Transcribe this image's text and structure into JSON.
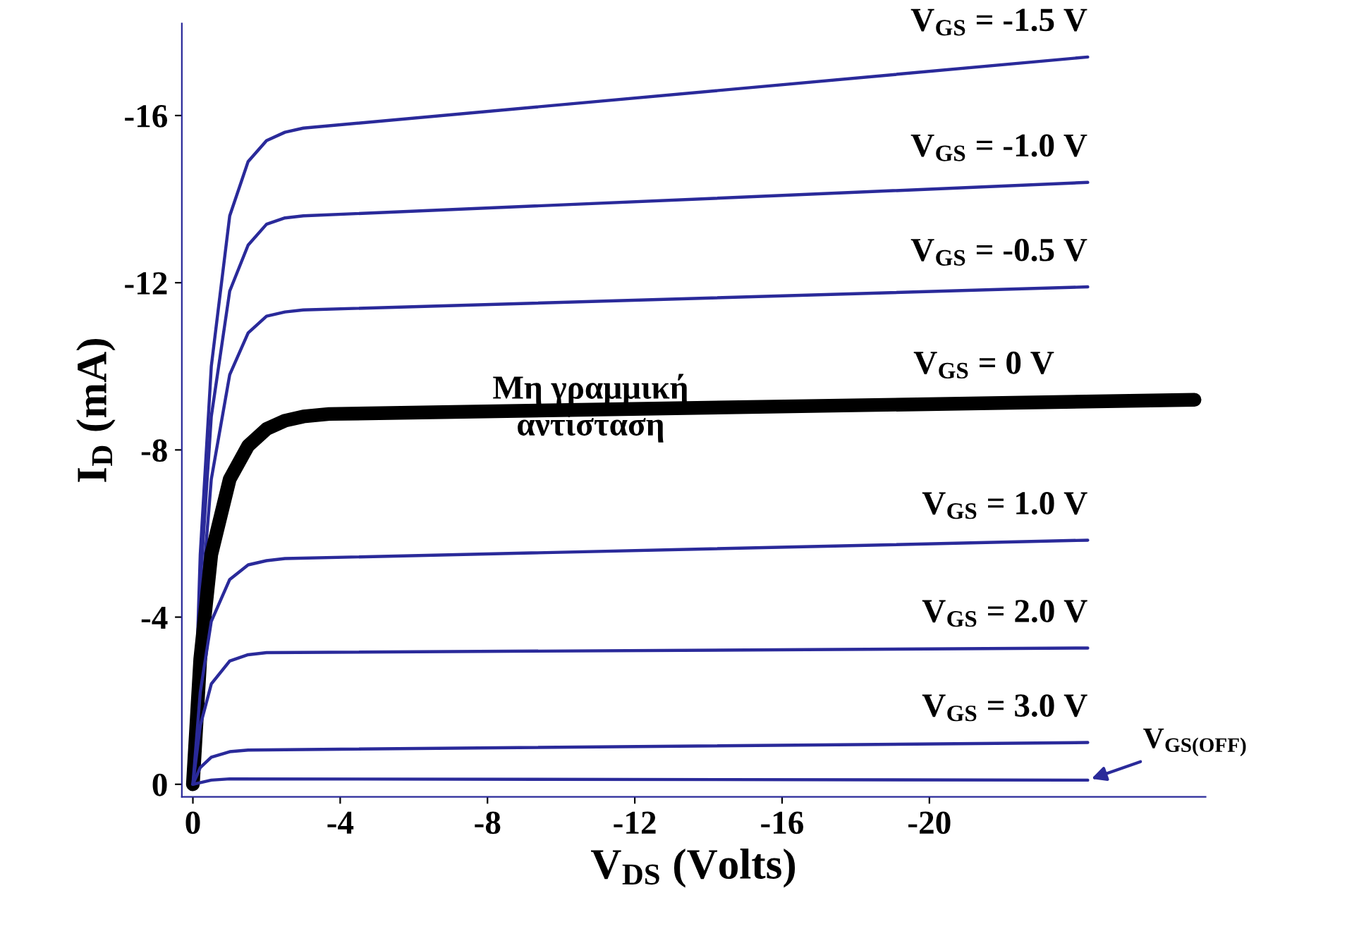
{
  "chart_data": {
    "type": "line",
    "xlabel": "V$_{DS}$ (Volts)",
    "ylabel": "I$_{D}$ (mA)",
    "xlim": [
      0.3,
      -27.5
    ],
    "ylim": [
      0.3,
      -18.2
    ],
    "xticks": [
      0,
      -4,
      -8,
      -12,
      -16,
      -20
    ],
    "yticks": [
      0,
      -4,
      -8,
      -12,
      -16
    ],
    "grid": false,
    "legend": false,
    "marker": "none",
    "line_style": "solid",
    "annotations": [
      "Μη γραμμική\nαντίσταση",
      {
        "text": "V$_{GS(OFF)}$",
        "x": -24.3,
        "y": -0.1
      }
    ],
    "series": [
      {
        "name": "V$_{GS}$ = -1.5 V",
        "color": "#2a2a9a",
        "x": [
          0,
          -0.2,
          -0.5,
          -1,
          -1.5,
          -2,
          -2.5,
          -3,
          -24.3
        ],
        "values": [
          0,
          -5.5,
          -10,
          -13.6,
          -14.9,
          -15.4,
          -15.6,
          -15.7,
          -17.4
        ]
      },
      {
        "name": "V$_{GS}$ = -1.0 V",
        "color": "#2a2a9a",
        "x": [
          0,
          -0.2,
          -0.5,
          -1,
          -1.5,
          -2,
          -2.5,
          -3,
          -24.3
        ],
        "values": [
          0,
          -4.8,
          -8.8,
          -11.8,
          -12.9,
          -13.4,
          -13.55,
          -13.6,
          -14.4
        ]
      },
      {
        "name": "V$_{GS}$ = -0.5 V",
        "color": "#2a2a9a",
        "x": [
          0,
          -0.2,
          -0.5,
          -1,
          -1.5,
          -2,
          -2.5,
          -3,
          -24.3
        ],
        "values": [
          0,
          -4,
          -7.3,
          -9.8,
          -10.8,
          -11.2,
          -11.3,
          -11.35,
          -11.9
        ]
      },
      {
        "name": "V$_{GS}$ = 0 V",
        "color": "#000000",
        "x": [
          0,
          -0.2,
          -0.5,
          -1,
          -1.5,
          -2,
          -2.5,
          -3,
          -3.7,
          -27.2
        ],
        "values": [
          0,
          -3,
          -5.5,
          -7.3,
          -8.1,
          -8.5,
          -8.7,
          -8.8,
          -8.86,
          -9.2
        ]
      },
      {
        "name": "V$_{GS}$ = 1.0 V",
        "color": "#2a2a9a",
        "x": [
          0,
          -0.2,
          -0.5,
          -1,
          -1.5,
          -2,
          -2.5,
          -24.3
        ],
        "values": [
          0,
          -2.2,
          -3.9,
          -4.9,
          -5.25,
          -5.35,
          -5.4,
          -5.84
        ]
      },
      {
        "name": "V$_{GS}$ = 2.0 V",
        "color": "#2a2a9a",
        "x": [
          0,
          -0.2,
          -0.5,
          -1,
          -1.5,
          -2,
          -24.3
        ],
        "values": [
          0,
          -1.4,
          -2.4,
          -2.95,
          -3.1,
          -3.15,
          -3.26
        ]
      },
      {
        "name": "V$_{GS}$ = 3.0 V",
        "color": "#2a2a9a",
        "x": [
          0,
          -0.2,
          -0.5,
          -1,
          -1.5,
          -24.3
        ],
        "values": [
          0,
          -0.4,
          -0.65,
          -0.78,
          -0.82,
          -1.0
        ]
      },
      {
        "color": "#2a2a9a",
        "x": [
          0,
          -0.5,
          -1,
          -24.3
        ],
        "values": [
          0,
          -0.1,
          -0.13,
          -0.1
        ]
      }
    ]
  }
}
